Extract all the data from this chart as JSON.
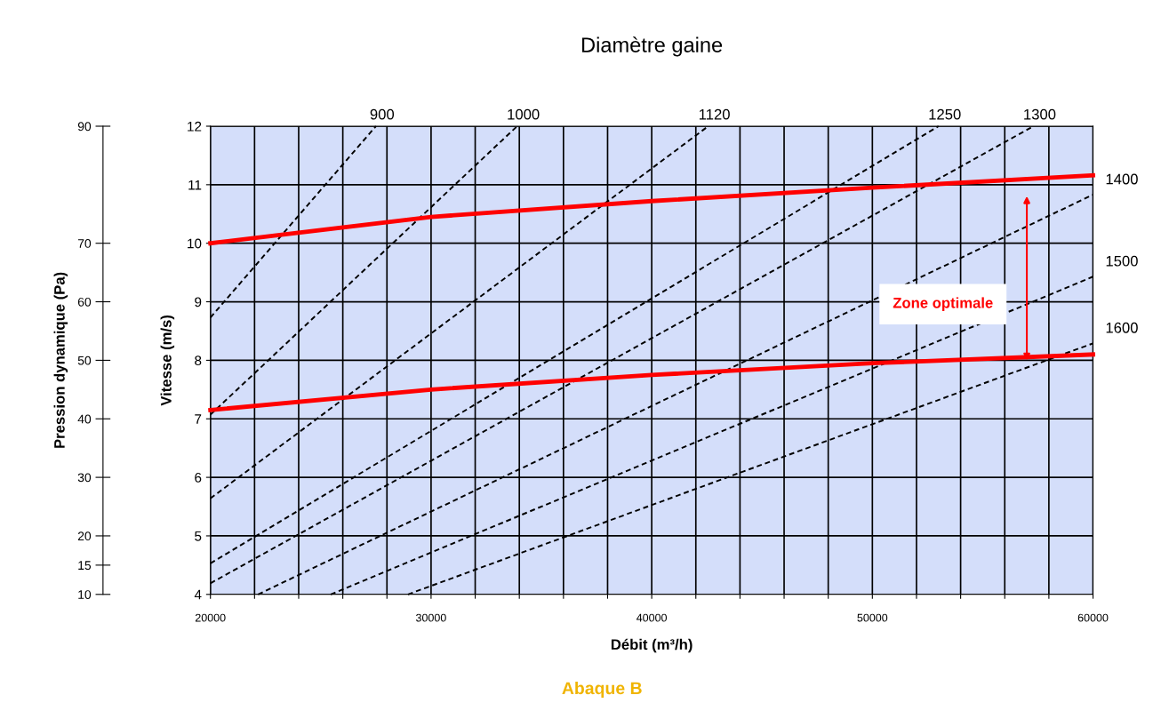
{
  "chart_data": {
    "type": "line",
    "title": "Diamètre gaine",
    "xlabel": "Débit (m³/h)",
    "ylabel": "Vitesse (m/s)",
    "y2label": "Pression dynamique (Pa)",
    "xlim": [
      20000,
      60000
    ],
    "xticks": [
      20000,
      {
        "value": 22000,
        "label": null
      },
      {
        "value": 24000,
        "label": null
      },
      {
        "value": 26000,
        "label": null
      },
      {
        "value": 28000,
        "label": null
      },
      30000,
      {
        "value": 32000,
        "label": null
      },
      {
        "value": 34000,
        "label": null
      },
      {
        "value": 36000,
        "label": null
      },
      {
        "value": 38000,
        "label": null
      },
      40000,
      {
        "value": 42000,
        "label": null
      },
      {
        "value": 44000,
        "label": null
      },
      {
        "value": 46000,
        "label": null
      },
      {
        "value": 48000,
        "label": null
      },
      50000,
      {
        "value": 52000,
        "label": null
      },
      {
        "value": 54000,
        "label": null
      },
      {
        "value": 56000,
        "label": null
      },
      {
        "value": 58000,
        "label": null
      },
      60000
    ],
    "ylim": [
      4,
      12
    ],
    "yticks": [
      4,
      5,
      6,
      7,
      8,
      9,
      10,
      11,
      12
    ],
    "y2lim": [
      10,
      90
    ],
    "y2ticks": [
      10,
      15,
      20,
      30,
      40,
      50,
      60,
      70,
      90
    ],
    "grid": true,
    "legend": false,
    "marker": "none",
    "series": [
      {
        "name": "900",
        "color": "#000000",
        "line_style": "dashed",
        "x": [
          20000,
          27500
        ],
        "values": [
          8.73,
          12
        ]
      },
      {
        "name": "1000",
        "color": "#000000",
        "line_style": "dashed",
        "x": [
          20000,
          33900
        ],
        "values": [
          7.07,
          12
        ]
      },
      {
        "name": "1120",
        "color": "#000000",
        "line_style": "dashed",
        "x": [
          20000,
          42560
        ],
        "values": [
          5.64,
          12
        ]
      },
      {
        "name": "1250",
        "color": "#000000",
        "line_style": "dashed",
        "x": [
          20000,
          53000
        ],
        "values": [
          4.53,
          12
        ]
      },
      {
        "name": "1300",
        "color": "#000000",
        "line_style": "dashed",
        "x": [
          20000,
          57300
        ],
        "values": [
          4.19,
          12
        ]
      },
      {
        "name": "1400",
        "color": "#000000",
        "line_style": "dashed",
        "x": [
          22160,
          60000
        ],
        "values": [
          4,
          10.83
        ]
      },
      {
        "name": "1500",
        "color": "#000000",
        "line_style": "dashed",
        "x": [
          25450,
          60000
        ],
        "values": [
          4,
          9.43
        ]
      },
      {
        "name": "1600",
        "color": "#000000",
        "line_style": "dashed",
        "x": [
          28950,
          60000
        ],
        "values": [
          4,
          8.29
        ]
      },
      {
        "color": "#ff0000",
        "line_style": "solid",
        "x": [
          20000,
          30000,
          40000,
          50000,
          60000
        ],
        "values": [
          10.0,
          10.45,
          10.72,
          10.95,
          11.16
        ]
      },
      {
        "color": "#ff0000",
        "line_style": "solid",
        "x": [
          20000,
          30000,
          40000,
          50000,
          60000
        ],
        "values": [
          7.15,
          7.5,
          7.75,
          7.95,
          8.1
        ]
      }
    ],
    "annotations": [
      "Zone optimale",
      "Abaque B"
    ]
  }
}
